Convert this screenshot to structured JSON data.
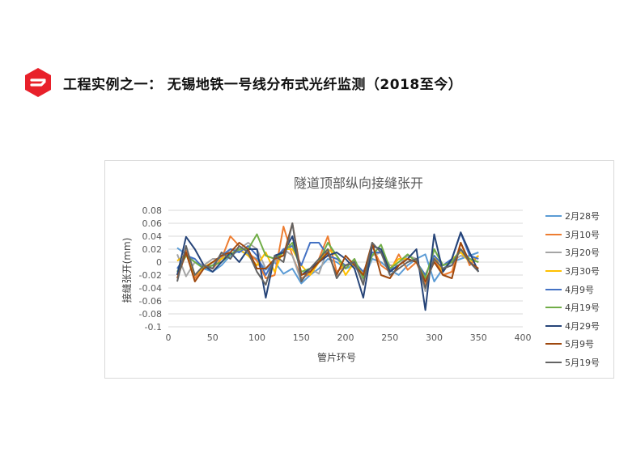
{
  "slide": {
    "title": "工程实例之一： 无锡地铁一号线分布式光纤监测（2018至今）",
    "logo_icon": "company-logo-icon",
    "logo_color": "#E8202A"
  },
  "chart_data": {
    "type": "line",
    "title": "隧道顶部纵向接缝张开",
    "xlabel": "管片环号",
    "ylabel": "接缝张开(mm)",
    "xlim": [
      0,
      400
    ],
    "ylim": [
      -0.1,
      0.08
    ],
    "xticks": [
      0,
      50,
      100,
      150,
      200,
      250,
      300,
      350,
      400
    ],
    "yticks": [
      0.08,
      0.06,
      0.04,
      0.02,
      0,
      -0.02,
      -0.04,
      -0.06,
      -0.08,
      -0.1
    ],
    "ytick_labels": [
      "0.08",
      "0.06",
      "0.04",
      "0.02",
      "0",
      "-0.02",
      "-0.04",
      "-0.06",
      "-0.08",
      "-0.1"
    ],
    "grid": "horizontal",
    "legend_position": "right",
    "x": [
      10,
      20,
      30,
      40,
      50,
      60,
      70,
      80,
      90,
      100,
      110,
      120,
      130,
      140,
      150,
      160,
      170,
      180,
      190,
      200,
      210,
      220,
      230,
      240,
      250,
      260,
      270,
      280,
      290,
      300,
      310,
      320,
      330,
      340,
      350
    ],
    "series": [
      {
        "name": "2月28号",
        "color": "#5B9BD5",
        "values": [
          0.022,
          0.012,
          0.0,
          -0.01,
          -0.015,
          -0.005,
          0.01,
          0.018,
          0.012,
          0.005,
          -0.012,
          0.0,
          -0.018,
          -0.01,
          -0.033,
          -0.02,
          -0.01,
          0.005,
          0.0,
          -0.01,
          -0.005,
          -0.028,
          0.005,
          0.0,
          -0.012,
          -0.02,
          -0.005,
          0.005,
          0.012,
          -0.03,
          -0.01,
          0.0,
          0.005,
          0.01,
          0.015
        ]
      },
      {
        "name": "3月10号",
        "color": "#ED7D31",
        "values": [
          -0.02,
          0.018,
          -0.025,
          -0.005,
          -0.01,
          0.005,
          0.04,
          0.025,
          0.015,
          0.002,
          -0.025,
          -0.02,
          0.055,
          0.01,
          -0.025,
          -0.018,
          0.005,
          0.04,
          -0.015,
          -0.005,
          0.002,
          -0.02,
          0.025,
          -0.005,
          -0.015,
          0.012,
          -0.012,
          0.0,
          -0.035,
          0.005,
          -0.02,
          -0.015,
          0.03,
          -0.005,
          0.01
        ]
      },
      {
        "name": "3月20号",
        "color": "#A5A5A5",
        "values": [
          0.012,
          -0.022,
          0.0,
          -0.005,
          0.005,
          0.005,
          0.02,
          0.02,
          0.03,
          0.02,
          -0.01,
          0.0,
          0.02,
          0.01,
          -0.03,
          -0.01,
          -0.018,
          0.02,
          0.01,
          -0.01,
          0.005,
          -0.03,
          0.01,
          0.015,
          -0.005,
          -0.005,
          0.01,
          0.005,
          -0.045,
          0.02,
          -0.005,
          0.0,
          0.01,
          0.005,
          0.0
        ]
      },
      {
        "name": "3月30号",
        "color": "#FFC000",
        "values": [
          0.002,
          0.012,
          -0.02,
          -0.008,
          0.0,
          0.005,
          0.012,
          0.02,
          0.01,
          -0.005,
          0.015,
          -0.015,
          0.02,
          0.02,
          -0.005,
          -0.02,
          0.0,
          0.02,
          0.01,
          -0.02,
          0.0,
          -0.02,
          0.015,
          0.015,
          -0.01,
          0.005,
          0.005,
          0.0,
          -0.02,
          0.01,
          -0.015,
          0.005,
          0.015,
          0.0,
          0.01
        ]
      },
      {
        "name": "4月9号",
        "color": "#4472C4",
        "values": [
          -0.01,
          0.01,
          0.005,
          -0.01,
          -0.005,
          0.01,
          0.02,
          0.015,
          0.025,
          0.01,
          -0.02,
          0.005,
          0.02,
          0.025,
          -0.005,
          0.03,
          0.03,
          0.01,
          0.005,
          -0.005,
          0.0,
          -0.015,
          0.015,
          0.015,
          -0.012,
          -0.005,
          0.005,
          0.0,
          -0.02,
          0.01,
          -0.005,
          0.005,
          0.045,
          0.01,
          0.005
        ]
      },
      {
        "name": "4月19号",
        "color": "#70AD47",
        "values": [
          -0.015,
          0.01,
          0.0,
          -0.01,
          -0.005,
          0.0,
          0.012,
          0.02,
          0.02,
          0.043,
          0.01,
          0.005,
          0.015,
          0.03,
          -0.015,
          -0.01,
          0.0,
          0.03,
          0.01,
          -0.01,
          0.005,
          -0.025,
          0.01,
          0.027,
          -0.01,
          0.0,
          0.012,
          0.0,
          -0.025,
          0.02,
          -0.005,
          0.0,
          0.02,
          0.005,
          0.0
        ]
      },
      {
        "name": "4月29号",
        "color": "#264478",
        "values": [
          -0.02,
          0.039,
          0.02,
          -0.005,
          -0.015,
          0.0,
          0.015,
          0.0,
          0.02,
          0.02,
          -0.055,
          0.01,
          0.015,
          0.04,
          -0.02,
          -0.01,
          0.0,
          0.01,
          0.015,
          0.005,
          -0.01,
          -0.055,
          0.025,
          0.02,
          -0.015,
          -0.005,
          0.005,
          0.02,
          -0.074,
          0.043,
          -0.015,
          0.005,
          0.046,
          0.015,
          -0.015
        ]
      },
      {
        "name": "5月9号",
        "color": "#9E480E",
        "values": [
          -0.025,
          0.015,
          -0.03,
          -0.01,
          0.0,
          0.01,
          0.015,
          0.03,
          0.02,
          -0.01,
          -0.01,
          0.005,
          0.01,
          0.06,
          -0.02,
          -0.015,
          0.0,
          0.015,
          -0.02,
          0.01,
          -0.005,
          -0.02,
          0.03,
          -0.02,
          -0.025,
          -0.005,
          0.005,
          0.0,
          -0.03,
          0.0,
          -0.02,
          -0.025,
          0.03,
          0.0,
          -0.01
        ]
      },
      {
        "name": "5月19号",
        "color": "#636363",
        "values": [
          -0.03,
          0.025,
          -0.02,
          -0.005,
          -0.01,
          0.015,
          0.005,
          0.025,
          0.015,
          -0.015,
          -0.035,
          0.01,
          0.0,
          0.06,
          -0.03,
          -0.01,
          0.005,
          0.02,
          -0.025,
          -0.005,
          0.0,
          -0.035,
          0.03,
          0.015,
          -0.02,
          -0.01,
          0.0,
          0.005,
          -0.04,
          0.005,
          -0.01,
          -0.005,
          0.02,
          0.0,
          -0.015
        ]
      }
    ]
  }
}
